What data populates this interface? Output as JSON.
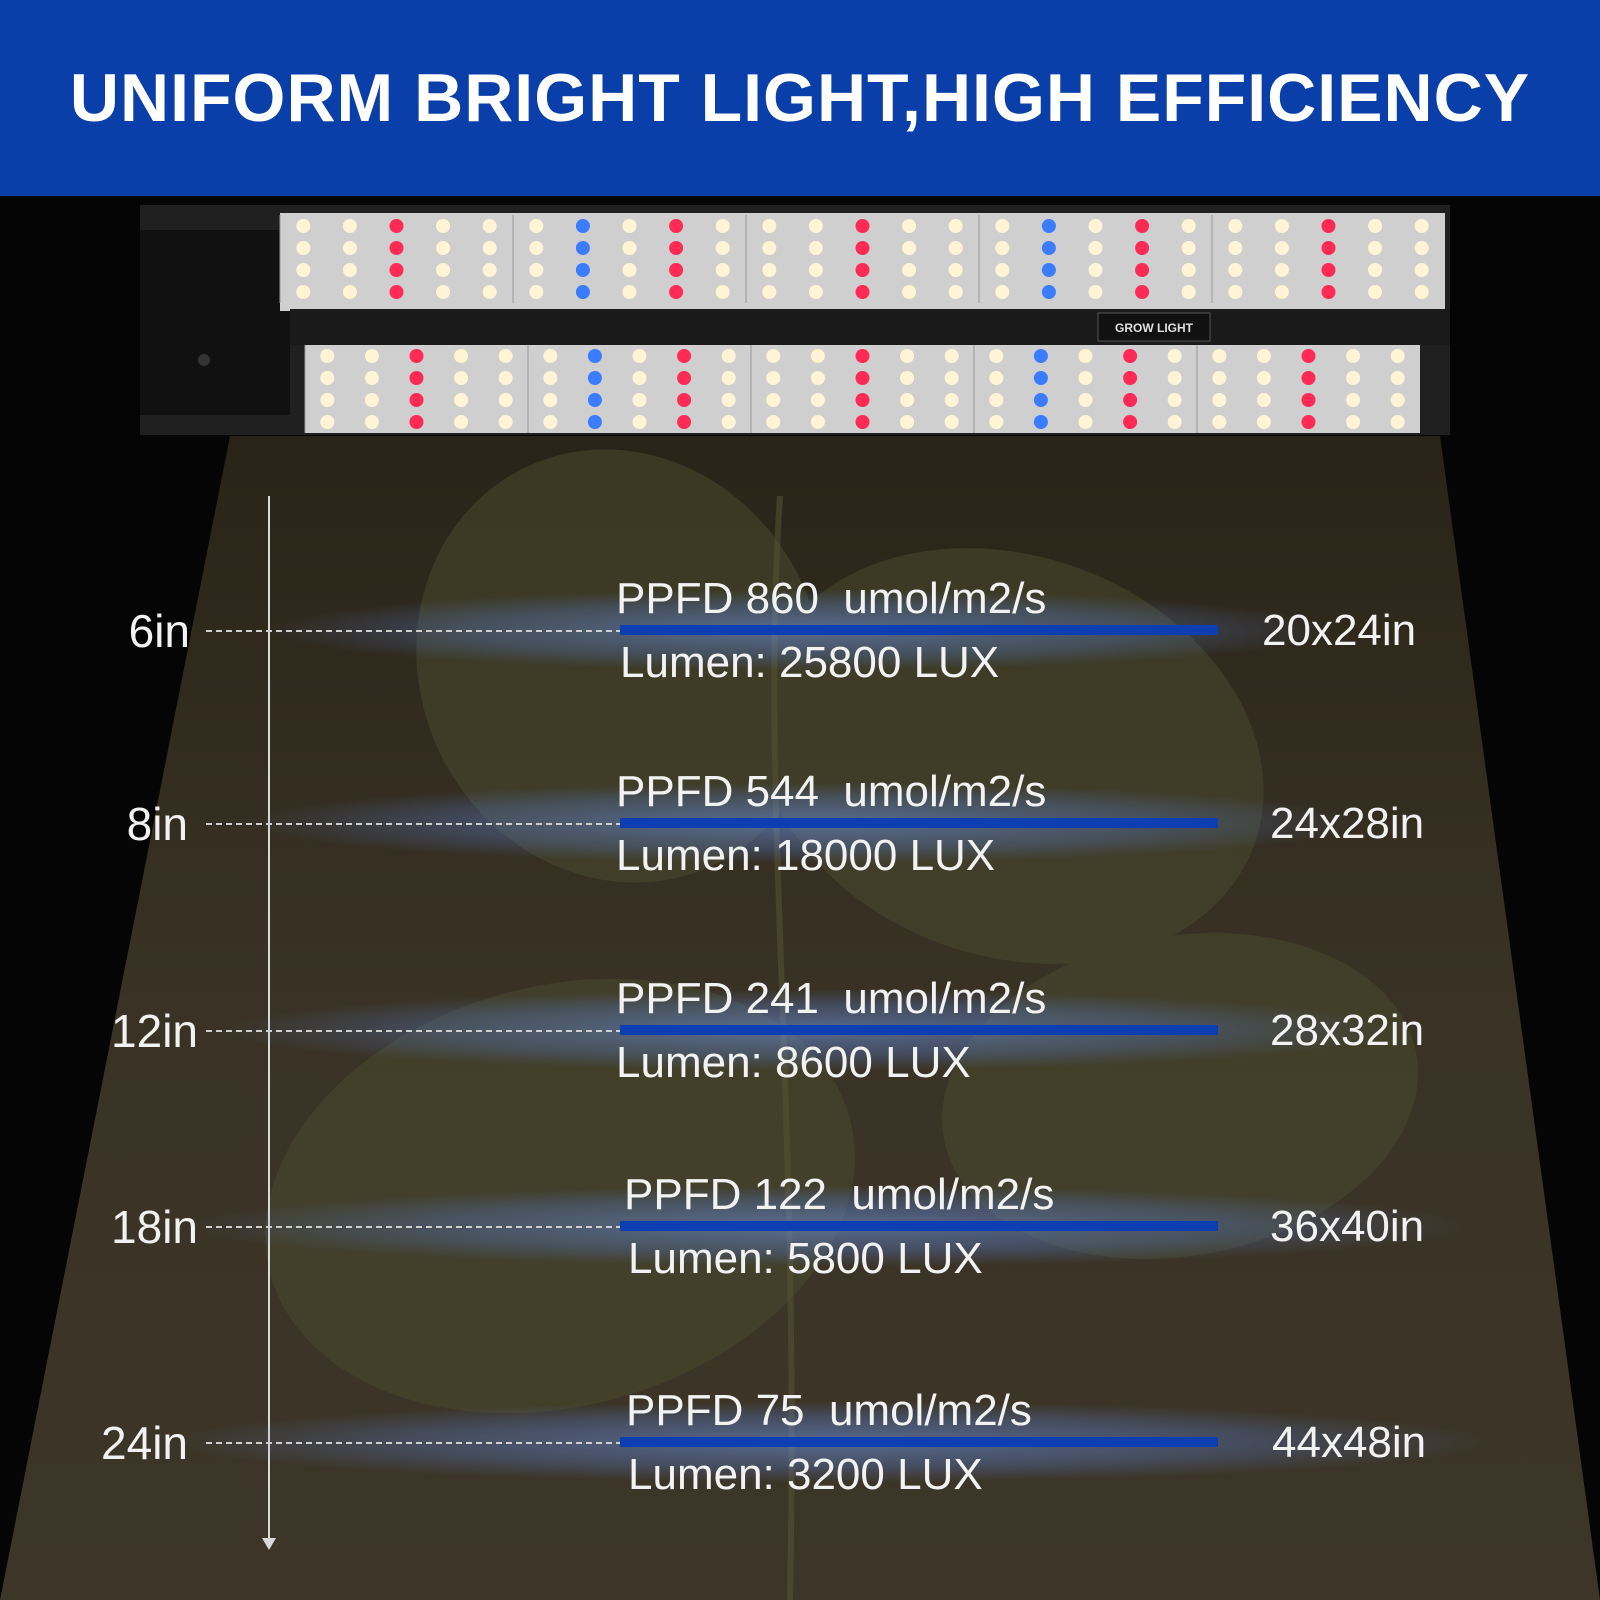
{
  "header": {
    "title": "UNIFORM BRIGHT LIGHT,HIGH EFFICIENCY"
  },
  "colors": {
    "banner": "#0a3ea8",
    "bar": "#0d3fb3",
    "led_warm": "#fff4d6",
    "led_red": "#ff2a55",
    "led_blue": "#3a7bff"
  },
  "fixture": {
    "label": "GROW LIGHT"
  },
  "levels": [
    {
      "height": "6in",
      "ppfd": "PPFD 860  umol/m2/s",
      "lumen": "Lumen: 25800 LUX",
      "coverage": "20x24in"
    },
    {
      "height": "8in",
      "ppfd": "PPFD 544  umol/m2/s",
      "lumen": "Lumen: 18000 LUX",
      "coverage": "24x28in"
    },
    {
      "height": "12in",
      "ppfd": "PPFD 241  umol/m2/s",
      "lumen": "Lumen: 8600 LUX",
      "coverage": "28x32in"
    },
    {
      "height": "18in",
      "ppfd": "PPFD 122  umol/m2/s",
      "lumen": "Lumen: 5800 LUX",
      "coverage": "36x40in"
    },
    {
      "height": "24in",
      "ppfd": "PPFD 75  umol/m2/s",
      "lumen": "Lumen: 3200 LUX",
      "coverage": "44x48in"
    }
  ]
}
